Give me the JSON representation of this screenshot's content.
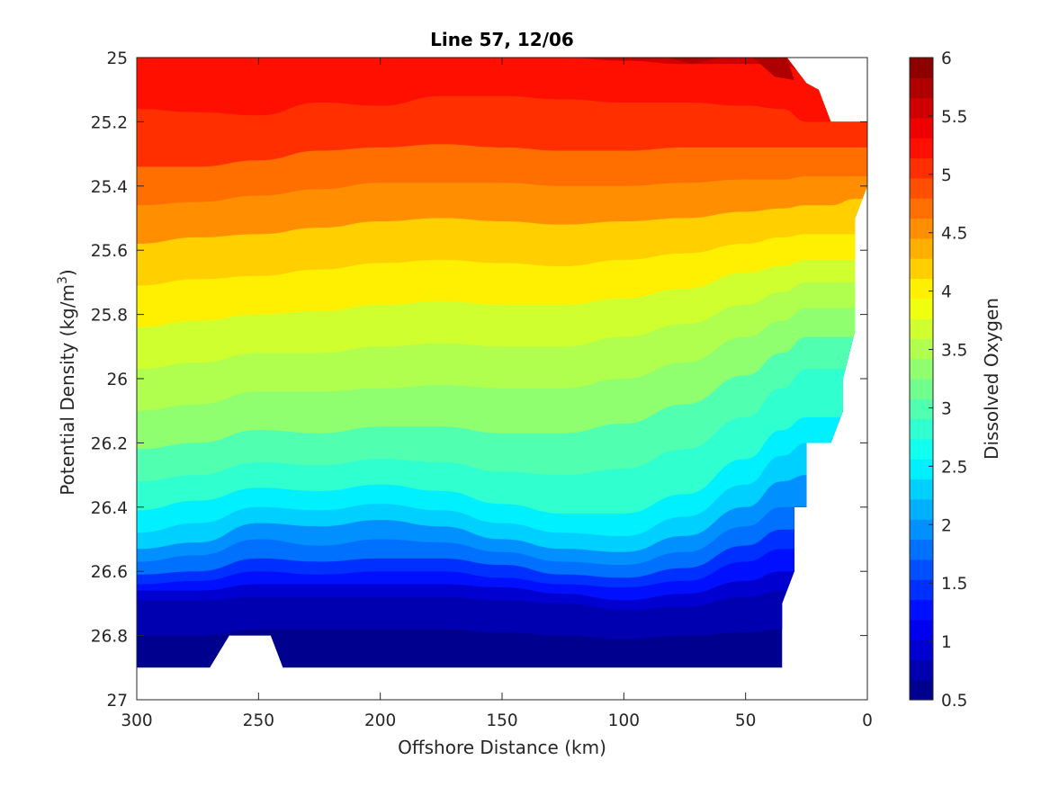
{
  "chart_data": {
    "type": "heatmap",
    "subtype": "filled-contour",
    "title": "Line 57, 12/06",
    "xlabel": "Offshore Distance (km)",
    "ylabel_main": "Potential Density (kg/m",
    "ylabel_sup": "3",
    "ylabel_close": ")",
    "colorbar_label": "Dissolved Oxygen",
    "xlim": [
      300,
      0
    ],
    "x_reversed": true,
    "ylim": [
      25,
      27
    ],
    "y_reversed": true,
    "x_ticks": [
      300,
      250,
      200,
      150,
      100,
      50,
      0
    ],
    "x_tick_labels": [
      "300",
      "250",
      "200",
      "150",
      "100",
      "50",
      "0"
    ],
    "y_ticks": [
      25,
      25.2,
      25.4,
      25.6,
      25.8,
      26,
      26.2,
      26.4,
      26.6,
      26.8,
      27
    ],
    "y_tick_labels": [
      "25",
      "25.2",
      "25.4",
      "25.6",
      "25.8",
      "26",
      "26.2",
      "26.4",
      "26.6",
      "26.8",
      "27"
    ],
    "colorbar_limits": [
      0.5,
      6
    ],
    "colorbar_ticks": [
      0.5,
      1,
      1.5,
      2,
      2.5,
      3,
      3.5,
      4,
      4.5,
      5,
      5.5,
      6
    ],
    "colorbar_tick_labels": [
      "0.5",
      "1",
      "1.5",
      "2",
      "2.5",
      "3",
      "3.5",
      "4",
      "4.5",
      "5",
      "5.5",
      "6"
    ],
    "contour_levels": [
      0.5,
      0.75,
      1,
      1.25,
      1.5,
      1.75,
      2,
      2.25,
      2.5,
      2.75,
      3,
      3.25,
      3.5,
      3.75,
      4,
      4.25,
      4.5,
      4.75,
      5,
      5.25,
      5.5,
      5.75,
      6
    ],
    "colormap": [
      "#00008f",
      "#0000b0",
      "#0000d0",
      "#0000f0",
      "#0010ff",
      "#0030ff",
      "#0050ff",
      "#0070ff",
      "#0090ff",
      "#00b0ff",
      "#00d0ff",
      "#00f0ff",
      "#10ffef",
      "#30ffcf",
      "#50ffaf",
      "#70ff8f",
      "#90ff6f",
      "#b0ff4f",
      "#d0ff2f",
      "#f0ff0f",
      "#ffef00",
      "#ffcf00",
      "#ffaf00",
      "#ff8f00",
      "#ff6f00",
      "#ff4f00",
      "#ff2f00",
      "#ff0f00",
      "#ef0000",
      "#cf0000",
      "#af0000",
      "#8f0000"
    ],
    "grid": false,
    "legend": "colorbar-right",
    "x_grid": [
      300,
      275,
      250,
      225,
      200,
      175,
      150,
      125,
      100,
      75,
      50,
      35,
      25,
      15,
      5,
      0
    ],
    "contour_isolines_density": {
      "0.75": [
        26.8,
        26.8,
        26.78,
        26.78,
        26.78,
        26.78,
        26.79,
        26.8,
        26.81,
        26.8,
        26.79,
        26.78,
        26.78,
        26.78,
        26.78,
        26.78
      ],
      "1": [
        26.69,
        26.69,
        26.68,
        26.68,
        26.68,
        26.68,
        26.69,
        26.7,
        26.72,
        26.71,
        26.68,
        26.66,
        26.66,
        26.66,
        26.66,
        26.66
      ],
      "1.25": [
        26.66,
        26.66,
        26.64,
        26.64,
        26.64,
        26.64,
        26.65,
        26.67,
        26.69,
        26.67,
        26.63,
        26.6,
        26.6,
        26.6,
        26.6,
        26.6
      ],
      "1.5": [
        26.64,
        26.63,
        26.6,
        26.61,
        26.6,
        26.6,
        26.62,
        26.64,
        26.65,
        26.63,
        26.57,
        26.53,
        26.53,
        26.53,
        26.53,
        26.53
      ],
      "1.75": [
        26.61,
        26.6,
        26.56,
        26.57,
        26.56,
        26.56,
        26.58,
        26.61,
        26.62,
        26.59,
        26.52,
        26.47,
        26.47,
        26.47,
        26.47,
        26.47
      ],
      "2": [
        26.57,
        26.55,
        26.5,
        26.52,
        26.5,
        26.51,
        26.54,
        26.57,
        26.58,
        26.54,
        26.46,
        26.4,
        26.4,
        26.4,
        26.4,
        26.4
      ],
      "2.25": [
        26.53,
        26.51,
        26.45,
        26.46,
        26.44,
        26.46,
        26.5,
        26.53,
        26.54,
        26.49,
        26.4,
        26.32,
        26.3,
        26.3,
        26.3,
        26.3
      ],
      "2.5": [
        26.48,
        26.45,
        26.4,
        26.41,
        26.39,
        26.41,
        26.45,
        26.48,
        26.49,
        26.43,
        26.33,
        26.24,
        26.2,
        26.2,
        26.2,
        26.2
      ],
      "2.75": [
        26.41,
        26.38,
        26.34,
        26.35,
        26.33,
        26.35,
        26.39,
        26.42,
        26.42,
        26.36,
        26.25,
        26.16,
        26.12,
        26.12,
        26.12,
        26.12
      ],
      "3": [
        26.32,
        26.3,
        26.26,
        26.27,
        26.25,
        26.26,
        26.29,
        26.3,
        26.28,
        26.22,
        26.12,
        26.03,
        25.97,
        25.97,
        25.97,
        25.97
      ],
      "3.25": [
        26.22,
        26.2,
        26.16,
        26.17,
        26.15,
        26.15,
        26.17,
        26.17,
        26.14,
        26.08,
        25.99,
        25.92,
        25.87,
        25.87,
        25.87,
        25.87
      ],
      "3.5": [
        26.1,
        26.08,
        26.04,
        26.04,
        26.03,
        26.02,
        26.03,
        26.03,
        26.0,
        25.95,
        25.87,
        25.82,
        25.78,
        25.78,
        25.78,
        25.78
      ],
      "3.75": [
        25.97,
        25.95,
        25.92,
        25.92,
        25.9,
        25.89,
        25.9,
        25.9,
        25.87,
        25.83,
        25.77,
        25.73,
        25.7,
        25.7,
        25.7,
        25.7
      ],
      "4": [
        25.84,
        25.82,
        25.8,
        25.79,
        25.77,
        25.76,
        25.77,
        25.77,
        25.75,
        25.72,
        25.67,
        25.65,
        25.63,
        25.63,
        25.63,
        25.63
      ],
      "4.25": [
        25.71,
        25.69,
        25.68,
        25.66,
        25.64,
        25.63,
        25.64,
        25.65,
        25.63,
        25.61,
        25.58,
        25.56,
        25.55,
        25.55,
        25.55,
        25.55
      ],
      "4.5": [
        25.58,
        25.56,
        25.55,
        25.53,
        25.51,
        25.5,
        25.51,
        25.52,
        25.51,
        25.5,
        25.48,
        25.47,
        25.46,
        25.46,
        25.44,
        25.44
      ],
      "4.75": [
        25.46,
        25.45,
        25.43,
        25.41,
        25.39,
        25.39,
        25.39,
        25.4,
        25.4,
        25.39,
        25.38,
        25.38,
        25.37,
        25.37,
        25.37,
        25.37
      ],
      "5": [
        25.34,
        25.34,
        25.32,
        25.29,
        25.28,
        25.27,
        25.28,
        25.29,
        25.29,
        25.28,
        25.28,
        25.28,
        25.28,
        25.28,
        25.28,
        25.28
      ],
      "5.25": [
        25.16,
        25.17,
        25.18,
        25.14,
        25.15,
        25.12,
        25.12,
        25.13,
        25.14,
        25.14,
        25.15,
        25.16,
        25.2,
        25.2,
        25.2,
        25.2
      ],
      "5.5": [
        25.0,
        25.0,
        25.0,
        25.0,
        25.0,
        25.0,
        25.0,
        25.0,
        25.01,
        25.02,
        25.02,
        25.02,
        25.05,
        25.05,
        25.05,
        25.05
      ],
      "5.75": [
        25.0,
        25.0,
        25.0,
        25.0,
        25.0,
        25.0,
        25.0,
        25.0,
        25.0,
        25.0,
        25.0,
        25.0,
        25.0,
        25.0,
        25.0,
        25.0
      ]
    },
    "valid_region": {
      "top_boundary_x": [
        300,
        33,
        25,
        20,
        15,
        15,
        0
      ],
      "top_boundary_y": [
        25.0,
        25.0,
        25.08,
        25.1,
        25.2,
        25.2,
        25.2
      ],
      "inner_right_x": [
        0,
        5,
        5,
        5,
        10,
        10,
        15,
        25,
        25,
        30,
        30,
        35,
        35
      ],
      "inner_right_y": [
        25.4,
        25.5,
        25.8,
        25.85,
        26.0,
        26.1,
        26.2,
        26.2,
        26.4,
        26.4,
        26.6,
        26.7,
        26.9
      ],
      "bottom_density": 26.9,
      "gap_x": [
        270,
        262,
        245,
        240
      ],
      "gap_y": [
        26.9,
        26.8,
        26.8,
        26.9
      ]
    },
    "high_oxygen_patches": [
      {
        "level": 5.75,
        "x": [
          82,
          70,
          60,
          72
        ],
        "y": [
          25.0,
          25.0,
          25.0,
          25.02
        ]
      },
      {
        "level": 5.75,
        "x": [
          47,
          33,
          30,
          38
        ],
        "y": [
          25.0,
          25.0,
          25.07,
          25.06
        ]
      }
    ]
  }
}
